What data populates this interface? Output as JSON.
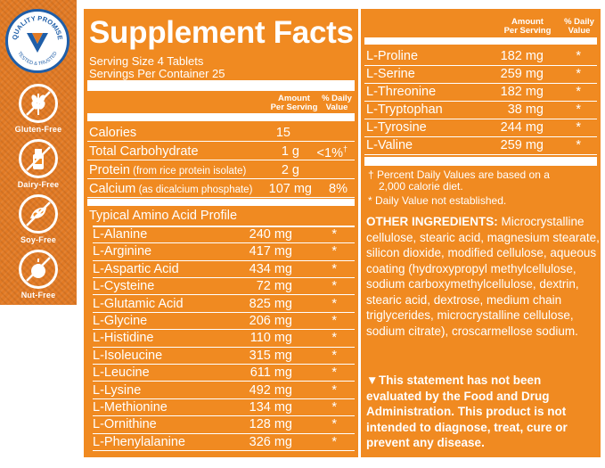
{
  "sidebar": {
    "seal_text": "QUALITY PROMISE · TESTED & TRUSTED",
    "badges": [
      {
        "label": "Gluten-Free",
        "icon": "wheat-icon"
      },
      {
        "label": "Dairy-Free",
        "icon": "milk-bottle-icon"
      },
      {
        "label": "Soy-Free",
        "icon": "soybean-icon"
      },
      {
        "label": "Nut-Free",
        "icon": "nut-icon"
      }
    ]
  },
  "colors": {
    "panel": "#f08a21",
    "sidebar": "#e27a24",
    "seal_blue": "#1f5ea8"
  },
  "facts": {
    "title": "Supplement Facts",
    "serving_size": "Serving Size 4 Tablets",
    "servings_per_container": "Servings Per Container 25",
    "header_amount": [
      "Amount",
      "Per Serving"
    ],
    "header_dv": [
      "% Daily",
      "Value"
    ],
    "nutrients": [
      {
        "name": "Calories",
        "sub": "",
        "amount": "15",
        "dv": ""
      },
      {
        "name": "Total Carbohydrate",
        "sub": "",
        "amount": "1 g",
        "dv": "<1%",
        "dv_mark": "†"
      },
      {
        "name": "Protein",
        "sub": " (from rice protein isolate)",
        "amount": "2 g",
        "dv": ""
      },
      {
        "name": "Calcium",
        "sub": " (as dicalcium phosphate)",
        "amount": "107 mg",
        "dv": "8%"
      }
    ],
    "amino_title": "Typical Amino Acid Profile",
    "amino_left": [
      {
        "name": "L-Alanine",
        "amount": "240 mg",
        "dv": "*"
      },
      {
        "name": "L-Arginine",
        "amount": "417 mg",
        "dv": "*"
      },
      {
        "name": "L-Aspartic Acid",
        "amount": "434 mg",
        "dv": "*"
      },
      {
        "name": "L-Cysteine",
        "amount": "72 mg",
        "dv": "*"
      },
      {
        "name": "L-Glutamic Acid",
        "amount": "825 mg",
        "dv": "*"
      },
      {
        "name": "L-Glycine",
        "amount": "206 mg",
        "dv": "*"
      },
      {
        "name": "L-Histidine",
        "amount": "110 mg",
        "dv": "*"
      },
      {
        "name": "L-Isoleucine",
        "amount": "315 mg",
        "dv": "*"
      },
      {
        "name": "L-Leucine",
        "amount": "611 mg",
        "dv": "*"
      },
      {
        "name": "L-Lysine",
        "amount": "492 mg",
        "dv": "*"
      },
      {
        "name": "L-Methionine",
        "amount": "134 mg",
        "dv": "*"
      },
      {
        "name": "L-Ornithine",
        "amount": "128 mg",
        "dv": "*"
      },
      {
        "name": "L-Phenylalanine",
        "amount": "326 mg",
        "dv": "*"
      }
    ],
    "amino_right": [
      {
        "name": "L-Proline",
        "amount": "182 mg",
        "dv": "*"
      },
      {
        "name": "L-Serine",
        "amount": "259 mg",
        "dv": "*"
      },
      {
        "name": "L-Threonine",
        "amount": "182 mg",
        "dv": "*"
      },
      {
        "name": "L-Tryptophan",
        "amount": "38 mg",
        "dv": "*"
      },
      {
        "name": "L-Tyrosine",
        "amount": "244 mg",
        "dv": "*"
      },
      {
        "name": "L-Valine",
        "amount": "259 mg",
        "dv": "*"
      }
    ],
    "footnote_dagger": "† Percent Daily Values are based on a",
    "footnote_dagger_2": "2,000 calorie diet.",
    "footnote_star": "* Daily Value not established."
  },
  "other_ingredients": {
    "label": "OTHER INGREDIENTS:",
    "text": " Microcrystalline cellulose, stearic acid, magnesium stearate, silicon dioxide, modified cellulose, aqueous coating (hydroxypropyl methylcellulose, sodium carboxymethylcellulose, dextrin, stearic acid, dextrose, medium chain triglycerides, microcrystalline cellulose, sodium citrate), croscarmellose sodium."
  },
  "statement": {
    "mark": "▼",
    "text": "This statement has not been evaluated by the Food and Drug Administration. This product is not intended to diagnose, treat, cure or prevent any disease."
  }
}
